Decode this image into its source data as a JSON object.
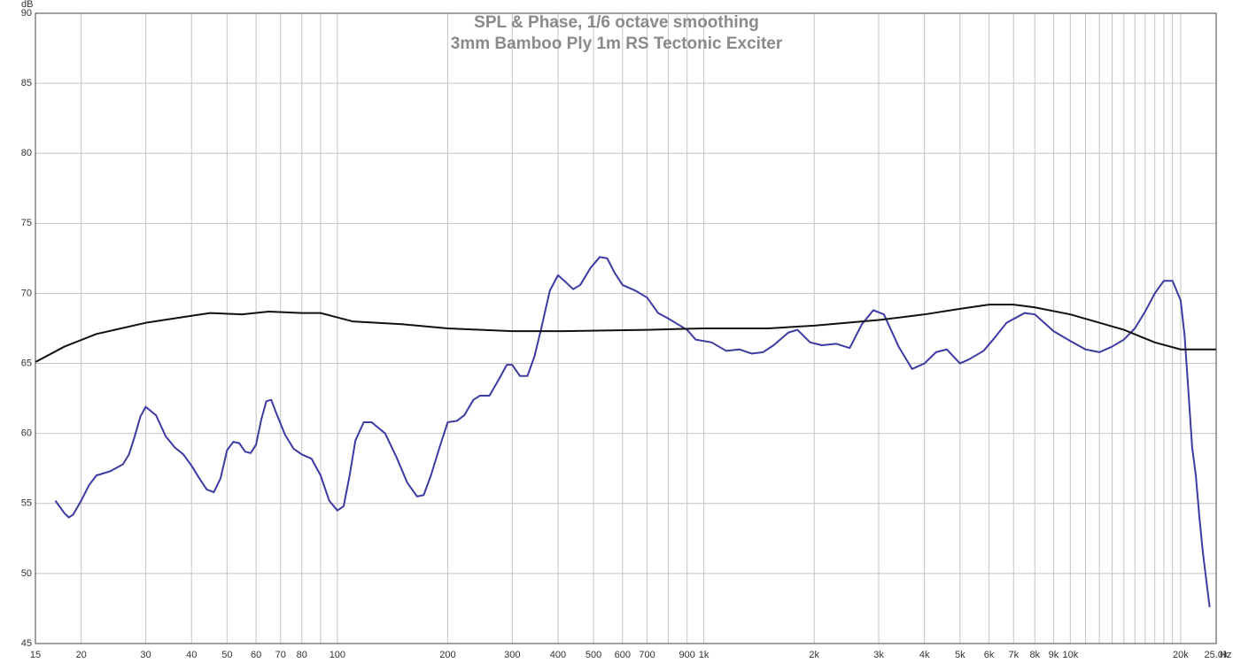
{
  "chart_data": {
    "type": "line",
    "title": "SPL & Phase, 1/6 octave smoothing",
    "subtitle": "3mm Bamboo Ply 1m RS Tectonic Exciter",
    "xlabel": "Hz",
    "ylabel": "dB",
    "xscale": "log",
    "grid": true,
    "xlim": [
      15,
      25000
    ],
    "ylim": [
      45,
      90
    ],
    "yticks": [
      45,
      50,
      55,
      60,
      65,
      70,
      75,
      80,
      85,
      90
    ],
    "xticks": [
      15,
      20,
      30,
      40,
      50,
      60,
      70,
      80,
      100,
      200,
      300,
      400,
      500,
      600,
      700,
      900,
      {
        "value": 1000,
        "label": "1k"
      },
      {
        "value": 2000,
        "label": "2k"
      },
      {
        "value": 3000,
        "label": "3k"
      },
      {
        "value": 4000,
        "label": "4k"
      },
      {
        "value": 5000,
        "label": "5k"
      },
      {
        "value": 6000,
        "label": "6k"
      },
      {
        "value": 7000,
        "label": "7k"
      },
      {
        "value": 8000,
        "label": "8k"
      },
      {
        "value": 9000,
        "label": "9k"
      },
      {
        "value": 10000,
        "label": "10k"
      },
      {
        "value": 20000,
        "label": "20k"
      },
      {
        "value": 25000,
        "label": "25.0k"
      }
    ],
    "x_minor_ticks": [
      90,
      800,
      11000,
      12000,
      13000,
      14000,
      15000,
      16000,
      17000,
      18000,
      19000
    ],
    "series": [
      {
        "color": "#3b3ba3",
        "x": [
          17,
          18,
          18.5,
          19,
          20,
          21,
          22,
          24,
          26,
          27,
          28,
          29,
          30,
          32,
          34,
          36,
          38,
          40,
          42,
          44,
          46,
          48,
          50,
          52,
          54,
          56,
          58,
          60,
          62,
          64,
          66,
          68,
          72,
          76,
          80,
          85,
          90,
          95,
          100,
          104,
          108,
          112,
          118,
          124,
          135,
          145,
          155,
          165,
          172,
          180,
          190,
          200,
          212,
          222,
          235,
          245,
          260,
          275,
          290,
          300,
          315,
          330,
          345,
          360,
          380,
          400,
          420,
          440,
          460,
          490,
          520,
          545,
          570,
          600,
          650,
          700,
          750,
          800,
          900,
          950,
          1050,
          1150,
          1250,
          1350,
          1450,
          1550,
          1700,
          1800,
          1950,
          2100,
          2300,
          2500,
          2700,
          2900,
          3100,
          3400,
          3700,
          4000,
          4300,
          4600,
          5000,
          5300,
          5800,
          6200,
          6700,
          7500,
          8000,
          9000,
          10000,
          11000,
          12000,
          13000,
          14000,
          15000,
          16000,
          17000,
          18000,
          19000,
          20000,
          20500,
          21000,
          21500,
          22000,
          22500,
          23000,
          23500,
          24000
        ],
        "values": [
          55.2,
          54.3,
          54.0,
          54.2,
          55.2,
          56.3,
          57.0,
          57.3,
          57.8,
          58.5,
          59.8,
          61.2,
          61.9,
          61.3,
          59.8,
          59.0,
          58.5,
          57.7,
          56.8,
          56.0,
          55.8,
          56.8,
          58.8,
          59.4,
          59.3,
          58.7,
          58.6,
          59.2,
          61.0,
          62.3,
          62.4,
          61.5,
          59.9,
          58.9,
          58.5,
          58.2,
          57.0,
          55.2,
          54.5,
          54.8,
          57.0,
          59.5,
          60.8,
          60.8,
          60.0,
          58.3,
          56.5,
          55.5,
          55.6,
          57.0,
          59.0,
          60.8,
          60.9,
          61.3,
          62.4,
          62.7,
          62.7,
          63.8,
          64.9,
          64.9,
          64.1,
          64.1,
          65.5,
          67.5,
          70.2,
          71.3,
          70.8,
          70.3,
          70.6,
          71.8,
          72.6,
          72.5,
          71.5,
          70.6,
          70.2,
          69.7,
          68.6,
          68.2,
          67.4,
          66.7,
          66.5,
          65.9,
          66.0,
          65.7,
          65.8,
          66.3,
          67.2,
          67.4,
          66.5,
          66.3,
          66.4,
          66.1,
          67.8,
          68.8,
          68.5,
          66.2,
          64.6,
          65.0,
          65.8,
          66.0,
          65.0,
          65.3,
          65.9,
          66.8,
          67.9,
          68.6,
          68.5,
          67.3,
          66.6,
          66.0,
          65.8,
          66.2,
          66.7,
          67.5,
          68.7,
          70.0,
          70.9,
          70.9,
          69.5,
          67.0,
          63.0,
          59.0,
          57.0,
          54.0,
          51.5,
          49.5,
          47.6
        ]
      },
      {
        "color": "#111111",
        "x": [
          15,
          18,
          22,
          30,
          40,
          45,
          55,
          65,
          80,
          90,
          110,
          150,
          200,
          300,
          400,
          700,
          1000,
          1500,
          2000,
          3000,
          4000,
          5000,
          6000,
          7000,
          8000,
          10000,
          14000,
          17000,
          20000,
          25000
        ],
        "values": [
          65.1,
          66.2,
          67.1,
          67.9,
          68.4,
          68.6,
          68.5,
          68.7,
          68.6,
          68.6,
          68.0,
          67.8,
          67.5,
          67.3,
          67.3,
          67.4,
          67.5,
          67.5,
          67.7,
          68.1,
          68.5,
          68.9,
          69.2,
          69.2,
          69.0,
          68.5,
          67.4,
          66.5,
          66.0,
          66.0
        ]
      }
    ]
  }
}
